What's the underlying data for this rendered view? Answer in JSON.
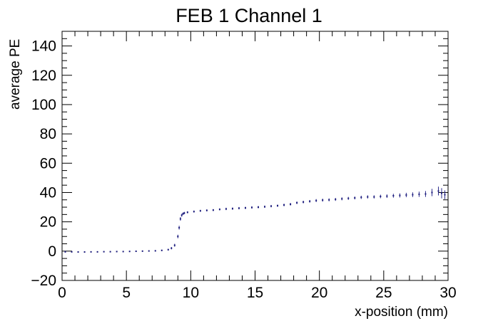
{
  "chart_data": {
    "type": "scatter",
    "title": "FEB 1 Channel 1",
    "xlabel": "x-position (mm)",
    "ylabel": "average PE",
    "xlim": [
      0,
      30
    ],
    "ylim": [
      -20,
      150
    ],
    "x_ticks": [
      0,
      5,
      10,
      15,
      20,
      25,
      30
    ],
    "y_ticks": [
      -20,
      0,
      20,
      40,
      60,
      80,
      100,
      120,
      140
    ],
    "x_tick_labels": [
      "0",
      "5",
      "10",
      "15",
      "20",
      "25",
      "30"
    ],
    "y_tick_labels": [
      "−20",
      "0",
      "20",
      "40",
      "60",
      "80",
      "100",
      "120",
      "140"
    ],
    "grid": false,
    "legend": "none",
    "marker_color": "#1a1a7a",
    "series": [
      {
        "x": [
          0.25,
          0.75,
          1.25,
          1.75,
          2.25,
          2.75,
          3.25,
          3.75,
          4.25,
          4.75,
          5.25,
          5.75,
          6.25,
          6.75,
          7.25,
          7.75,
          8.25,
          8.5,
          8.75,
          9.0,
          9.1,
          9.2,
          9.3,
          9.4,
          9.5,
          9.75,
          10.25,
          10.75,
          11.25,
          11.75,
          12.25,
          12.75,
          13.25,
          13.75,
          14.25,
          14.75,
          15.25,
          15.75,
          16.25,
          16.75,
          17.25,
          17.75,
          18.25,
          18.75,
          19.25,
          19.75,
          20.25,
          20.75,
          21.25,
          21.75,
          22.25,
          22.75,
          23.25,
          23.75,
          24.25,
          24.75,
          25.25,
          25.75,
          26.25,
          26.75,
          27.25,
          27.75,
          28.25,
          28.75,
          29.25,
          29.5,
          29.75
        ],
        "y": [
          -0.5,
          -0.5,
          -0.6,
          -0.6,
          -0.5,
          -0.5,
          -0.4,
          -0.4,
          -0.3,
          -0.3,
          -0.2,
          -0.1,
          0.0,
          0.1,
          0.2,
          0.5,
          1.0,
          2.0,
          4.0,
          10.0,
          16.0,
          22.0,
          24.5,
          25.5,
          26.0,
          26.5,
          27.0,
          27.5,
          27.8,
          28.0,
          28.5,
          28.8,
          29.0,
          29.3,
          29.5,
          29.8,
          30.0,
          30.3,
          30.7,
          31.0,
          31.5,
          32.0,
          33.0,
          33.5,
          34.0,
          34.5,
          34.8,
          35.0,
          35.3,
          35.7,
          36.0,
          36.3,
          36.7,
          37.0,
          37.0,
          37.3,
          37.5,
          37.8,
          38.0,
          38.3,
          38.5,
          38.8,
          39.0,
          40.0,
          41.0,
          39.5,
          38.5
        ],
        "err": [
          0.4,
          0.4,
          0.4,
          0.4,
          0.4,
          0.4,
          0.4,
          0.4,
          0.4,
          0.4,
          0.4,
          0.4,
          0.4,
          0.4,
          0.5,
          0.5,
          0.6,
          0.8,
          1.0,
          1.2,
          1.3,
          1.2,
          1.0,
          0.8,
          0.8,
          0.7,
          0.7,
          0.7,
          0.7,
          0.7,
          0.7,
          0.8,
          0.8,
          0.8,
          0.8,
          0.8,
          0.8,
          0.8,
          0.8,
          0.8,
          0.9,
          0.9,
          0.9,
          0.9,
          0.9,
          1.0,
          1.0,
          1.0,
          1.0,
          1.0,
          1.0,
          1.0,
          1.1,
          1.1,
          1.1,
          1.2,
          1.2,
          1.3,
          1.4,
          1.5,
          1.6,
          1.8,
          2.0,
          2.5,
          3.0,
          3.5,
          3.0
        ]
      }
    ]
  }
}
